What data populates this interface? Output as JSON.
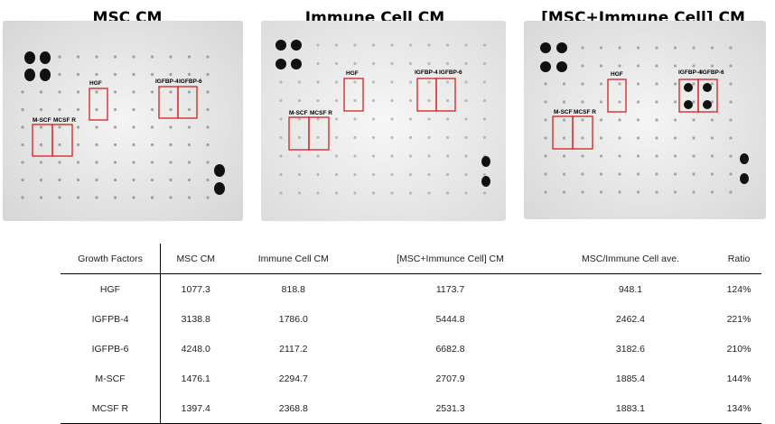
{
  "panels": [
    {
      "title": "MSC CM",
      "labels": {
        "hgf": "HGF",
        "igfbp4": "IGFBP-4",
        "igfbp6": "IGFBP-6",
        "mscf": "M-SCF",
        "mcsfr": "MCSF R"
      }
    },
    {
      "title": "Immune Cell CM",
      "labels": {
        "hgf": "HGF",
        "igfbp4": "IGFBP-4",
        "igfbp6": "IGFBP-6",
        "mscf": "M-SCF",
        "mcsfr": "MCSF R"
      }
    },
    {
      "title": "[MSC+Immune Cell] CM",
      "labels": {
        "hgf": "HGF",
        "igfbp4": "IGFBP-4",
        "igfbp6": "IGFBP-6",
        "mscf": "M-SCF",
        "mcsfr": "MCSF R"
      }
    }
  ],
  "colors": {
    "highlight": "#d42020",
    "membrane": "#e9e9e9"
  },
  "table": {
    "headers": [
      "Growth Factors",
      "MSC CM",
      "Immune Cell CM",
      "[MSC+Immunce Cell] CM",
      "MSC/Immune Cell ave.",
      "Ratio"
    ],
    "rows": [
      [
        "HGF",
        "1077.3",
        "818.8",
        "1173.7",
        "948.1",
        "124%"
      ],
      [
        "IGFPB-4",
        "3138.8",
        "1786.0",
        "5444.8",
        "2462.4",
        "221%"
      ],
      [
        "IGFPB-6",
        "4248.0",
        "2117.2",
        "6682.8",
        "3182.6",
        "210%"
      ],
      [
        "M-SCF",
        "1476.1",
        "2294.7",
        "2707.9",
        "1885.4",
        "144%"
      ],
      [
        "MCSF R",
        "1397.4",
        "2368.8",
        "2531.3",
        "1883.1",
        "134%"
      ]
    ]
  }
}
